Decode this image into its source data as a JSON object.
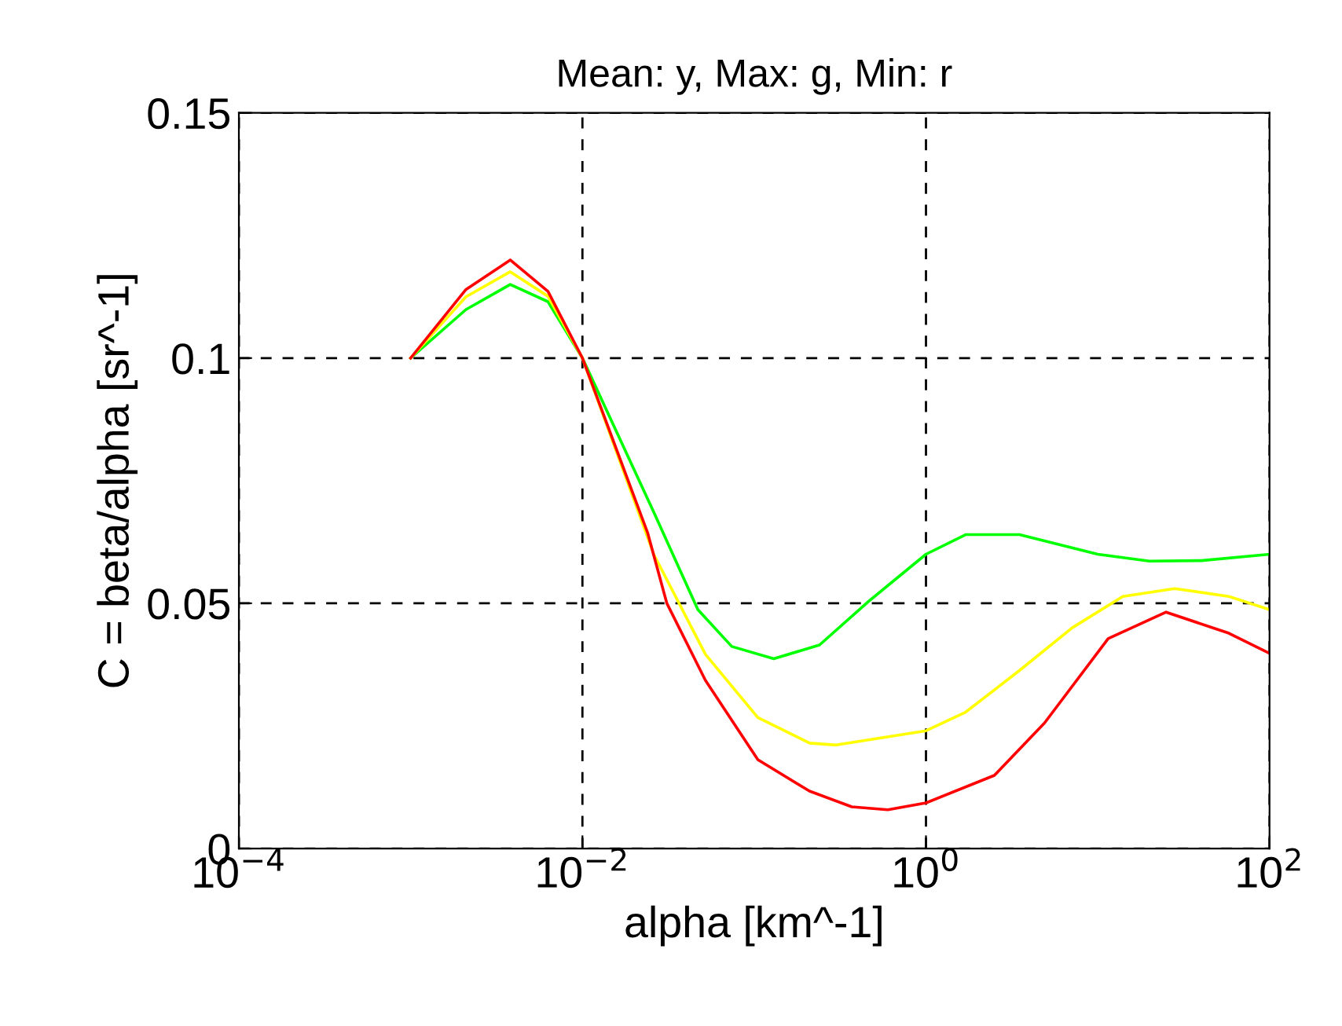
{
  "chart_data": {
    "type": "line",
    "title": "Mean: y, Max: g, Min: r",
    "xlabel": "alpha [km^-1]",
    "ylabel": "C = beta/alpha [sr^-1]",
    "log": "x",
    "xlim": [
      0.0001,
      100
    ],
    "xticks": [
      {
        "value": 0.0001,
        "label": "10$^{−4}$"
      },
      {
        "value": 0.01,
        "label": "10$^{−2}$"
      },
      {
        "value": 1,
        "label": "10$^{0}$"
      },
      {
        "value": 100,
        "label": "10$^{2}$"
      }
    ],
    "ylim": [
      0,
      0.15
    ],
    "yticks": [
      0,
      0.05,
      0.1,
      0.15
    ],
    "grid": true,
    "line_style": "solid",
    "marker": "none",
    "series": [
      {
        "color": "#00ff00",
        "x": [
          0.001,
          0.0021,
          0.0038,
          0.0063,
          0.01,
          0.026,
          0.047,
          0.074,
          0.13,
          0.24,
          0.46,
          1,
          1.7,
          3.5,
          10,
          20,
          40,
          100
        ],
        "values": [
          0.1,
          0.1099,
          0.115,
          0.1115,
          0.1,
          0.0686,
          0.0487,
          0.0412,
          0.0387,
          0.0415,
          0.0503,
          0.06,
          0.064,
          0.064,
          0.06,
          0.0586,
          0.0587,
          0.06
        ]
      },
      {
        "color": "#ffff00",
        "x": [
          0.001,
          0.0021,
          0.0038,
          0.0063,
          0.01,
          0.026,
          0.052,
          0.105,
          0.21,
          0.3,
          1,
          1.7,
          3.5,
          7.1,
          14,
          28,
          58,
          100
        ],
        "values": [
          0.1,
          0.1125,
          0.1176,
          0.1126,
          0.1,
          0.06,
          0.0396,
          0.0267,
          0.0215,
          0.0211,
          0.024,
          0.0278,
          0.0363,
          0.045,
          0.0514,
          0.053,
          0.0514,
          0.0487
        ]
      },
      {
        "color": "#ff0000",
        "x": [
          0.001,
          0.0021,
          0.0038,
          0.0063,
          0.01,
          0.024,
          0.031,
          0.052,
          0.105,
          0.21,
          0.37,
          0.6,
          1,
          2.5,
          4.9,
          11.5,
          25,
          58,
          100
        ],
        "values": [
          0.1,
          0.114,
          0.12,
          0.1136,
          0.1,
          0.0643,
          0.05,
          0.0343,
          0.0181,
          0.0117,
          0.0085,
          0.0079,
          0.0093,
          0.0149,
          0.0256,
          0.0428,
          0.0482,
          0.0439,
          0.0398
        ]
      }
    ]
  }
}
